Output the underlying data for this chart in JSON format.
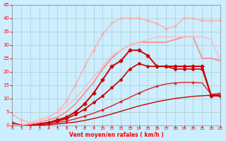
{
  "background_color": "#cceeff",
  "grid_color": "#aacccc",
  "x_label": "Vent moyen/en rafales ( km/h )",
  "x_min": 0,
  "x_max": 23,
  "y_min": 0,
  "y_max": 45,
  "y_ticks": [
    0,
    5,
    10,
    15,
    20,
    25,
    30,
    35,
    40,
    45
  ],
  "x_ticks": [
    0,
    1,
    2,
    3,
    4,
    5,
    6,
    7,
    8,
    9,
    10,
    11,
    12,
    13,
    14,
    15,
    16,
    17,
    18,
    19,
    20,
    21,
    22,
    23
  ],
  "lines": [
    {
      "x": [
        0,
        1,
        2,
        3,
        4,
        5,
        6,
        7,
        8,
        9,
        10,
        11,
        12,
        13,
        14,
        15,
        16,
        17,
        18,
        19,
        20,
        21,
        22,
        23
      ],
      "y": [
        0,
        0,
        0,
        0,
        0.2,
        0.5,
        0.8,
        1.2,
        1.8,
        2.5,
        3.3,
        4.2,
        5.2,
        6.2,
        7.2,
        8.0,
        8.8,
        9.4,
        10.0,
        10.4,
        10.8,
        11.0,
        11.2,
        11.5
      ],
      "color": "#cc0000",
      "lw": 1.0,
      "marker": null
    },
    {
      "x": [
        0,
        1,
        2,
        3,
        4,
        5,
        6,
        7,
        8,
        9,
        10,
        11,
        12,
        13,
        14,
        15,
        16,
        17,
        18,
        19,
        20,
        21,
        22,
        23
      ],
      "y": [
        0,
        0,
        0,
        0.2,
        0.5,
        1.0,
        1.6,
        2.4,
        3.4,
        4.5,
        5.8,
        7.2,
        8.8,
        10.4,
        12.0,
        13.4,
        14.6,
        15.4,
        15.8,
        16.0,
        16.0,
        15.8,
        11.5,
        12.0
      ],
      "color": "#dd2222",
      "lw": 1.0,
      "marker": "D",
      "markersize": 1.5,
      "markevery": 2
    },
    {
      "x": [
        0,
        1,
        2,
        3,
        4,
        5,
        6,
        7,
        8,
        9,
        10,
        11,
        12,
        13,
        14,
        15,
        16,
        17,
        18,
        19,
        20,
        21,
        22,
        23
      ],
      "y": [
        1,
        0,
        0,
        0.5,
        1,
        1.5,
        2.5,
        4,
        6,
        8.5,
        11,
        14,
        17,
        21,
        23,
        22,
        22,
        22,
        21,
        21,
        21,
        21,
        11,
        11
      ],
      "color": "#cc0000",
      "lw": 1.2,
      "marker": "D",
      "markersize": 2,
      "markevery": 1
    },
    {
      "x": [
        0,
        1,
        2,
        3,
        4,
        5,
        6,
        7,
        8,
        9,
        10,
        11,
        12,
        13,
        14,
        15,
        16,
        17,
        18,
        19,
        20,
        21,
        22,
        23
      ],
      "y": [
        0,
        0,
        0,
        0.5,
        1,
        2,
        3,
        5,
        8,
        12,
        17,
        22,
        24,
        28,
        28,
        26,
        22,
        22,
        22,
        22,
        22,
        22,
        11,
        11
      ],
      "color": "#cc0000",
      "lw": 1.4,
      "marker": "D",
      "markersize": 2.5,
      "markevery": 1
    },
    {
      "x": [
        0,
        1,
        2,
        3,
        4,
        5,
        6,
        7,
        8,
        9,
        10,
        11,
        12,
        13,
        14,
        15,
        16,
        17,
        18,
        19,
        20,
        21,
        22,
        23
      ],
      "y": [
        0,
        0,
        0.5,
        1,
        2,
        3,
        5,
        8,
        12,
        16,
        21,
        25,
        28,
        30,
        31,
        31,
        31,
        31,
        32,
        33,
        33,
        25,
        25,
        24
      ],
      "color": "#ff8888",
      "lw": 1.2,
      "marker": null
    },
    {
      "x": [
        0,
        1,
        2,
        3,
        4,
        5,
        6,
        7,
        8,
        9,
        10,
        11,
        12,
        13,
        14,
        15,
        16,
        17,
        18,
        19,
        20,
        21,
        22,
        23
      ],
      "y": [
        4,
        2,
        1,
        2,
        3,
        5,
        9,
        15,
        22,
        28,
        34,
        38,
        40,
        40,
        40,
        39,
        38,
        36,
        37,
        40,
        40,
        39,
        39,
        39
      ],
      "color": "#ffaaaa",
      "lw": 1.0,
      "marker": "D",
      "markersize": 1.5,
      "markevery": 1
    },
    {
      "x": [
        0,
        1,
        2,
        3,
        4,
        5,
        6,
        7,
        8,
        9,
        10,
        11,
        12,
        13,
        14,
        15,
        16,
        17,
        18,
        19,
        20,
        21,
        22,
        23
      ],
      "y": [
        0,
        0,
        1,
        2,
        3,
        5,
        7,
        10,
        14,
        18,
        22,
        26,
        28,
        30,
        31,
        32,
        33,
        33,
        33,
        33,
        33,
        33,
        32,
        24
      ],
      "color": "#ffbbbb",
      "lw": 1.0,
      "marker": null
    }
  ]
}
